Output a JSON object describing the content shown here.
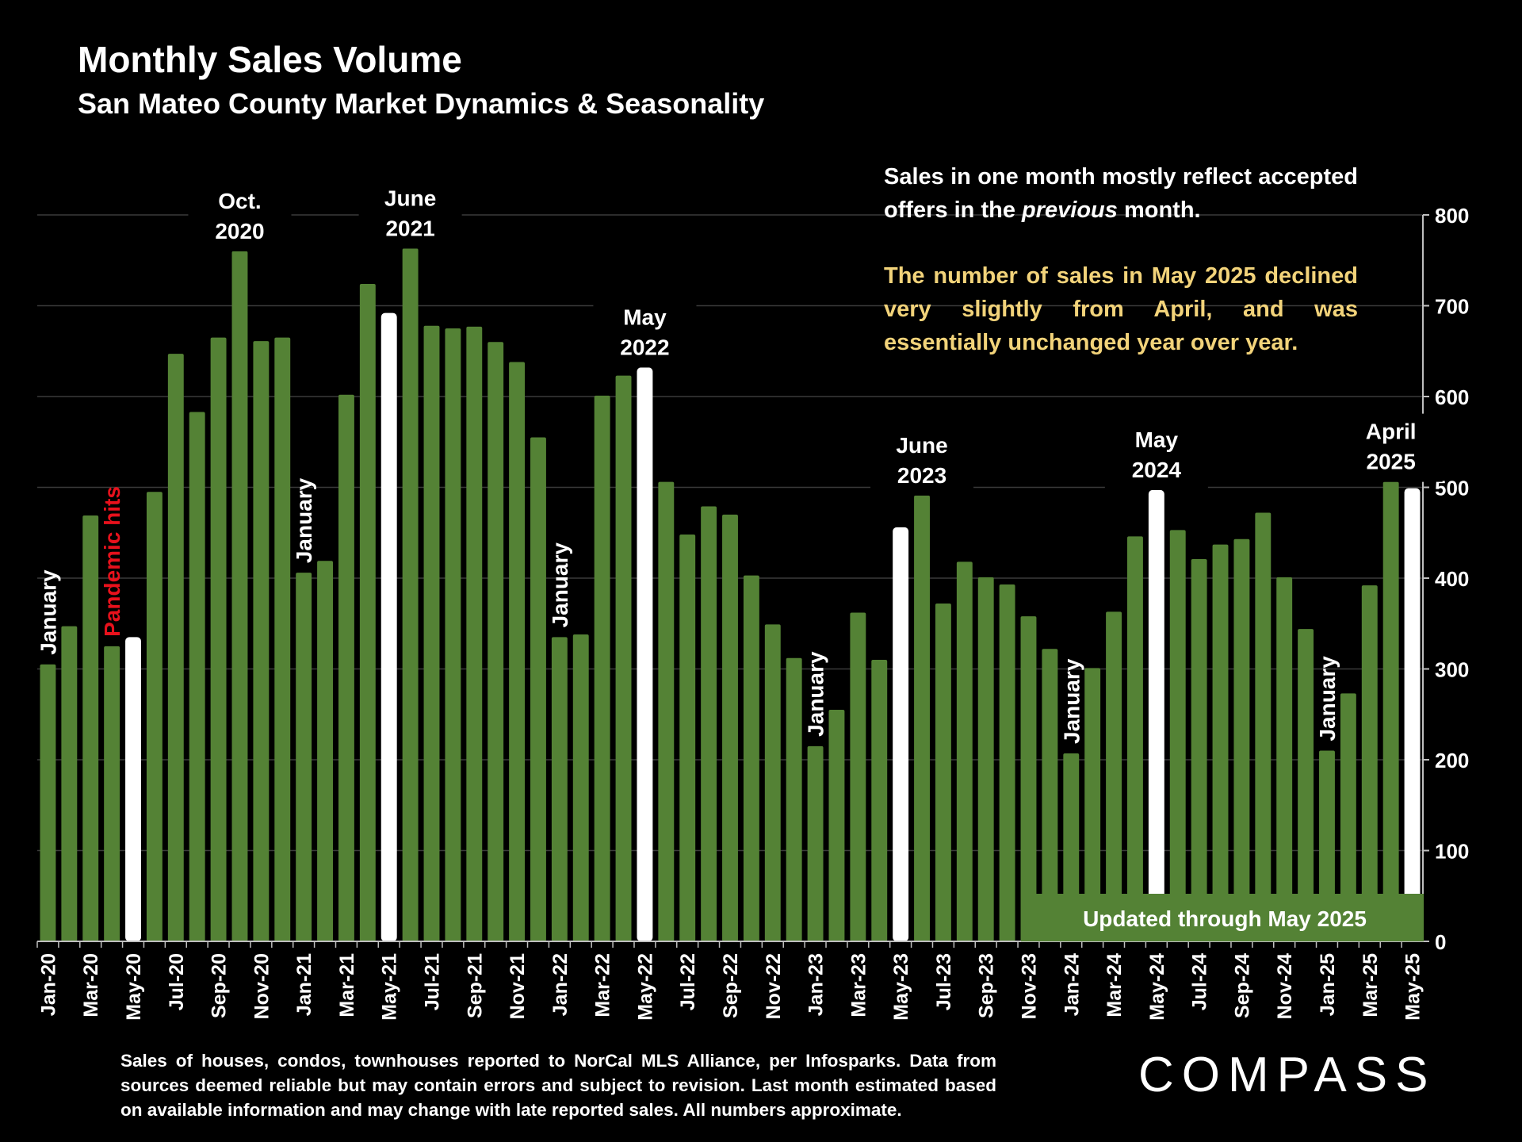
{
  "header": {
    "title": "Monthly Sales Volume",
    "subtitle": "San Mateo County Market Dynamics & Seasonality"
  },
  "notes": {
    "note1_a": "Sales in one month mostly reflect accepted offers in the ",
    "note1_em": "previous",
    "note1_b": " month.",
    "note2": "The number of sales in May 2025 declined very slightly from April, and was essentially unchanged year over year."
  },
  "updated_label": "Updated through May 2025",
  "footnote": "Sales of houses, condos, townhouses reported to NorCal MLS Alliance, per Infosparks. Data from sources deemed reliable but may contain errors and subject to revision. Last month estimated based on available information and may change with late reported sales. All numbers approximate.",
  "logo": "COMPASS",
  "colors": {
    "bar": "#548235",
    "highlight": "#ffffff",
    "note_yellow": "#f2d37a",
    "pandemic": "#e8111c",
    "updated_box": "#548235"
  },
  "chart_data": {
    "type": "bar",
    "title": "Monthly Sales Volume",
    "subtitle": "San Mateo County Market Dynamics & Seasonality",
    "ylim": [
      0,
      800
    ],
    "yticks": [
      0,
      100,
      200,
      300,
      400,
      500,
      600,
      700,
      800
    ],
    "y_axis_side": "right",
    "grid": true,
    "categories": [
      "Jan-20",
      "Feb-20",
      "Mar-20",
      "Apr-20",
      "May-20",
      "Jun-20",
      "Jul-20",
      "Aug-20",
      "Sep-20",
      "Oct-20",
      "Nov-20",
      "Dec-20",
      "Jan-21",
      "Feb-21",
      "Mar-21",
      "Apr-21",
      "May-21",
      "Jun-21",
      "Jul-21",
      "Aug-21",
      "Sep-21",
      "Oct-21",
      "Nov-21",
      "Dec-21",
      "Jan-22",
      "Feb-22",
      "Mar-22",
      "Apr-22",
      "May-22",
      "Jun-22",
      "Jul-22",
      "Aug-22",
      "Sep-22",
      "Oct-22",
      "Nov-22",
      "Dec-22",
      "Jan-23",
      "Feb-23",
      "Mar-23",
      "Apr-23",
      "May-23",
      "Jun-23",
      "Jul-23",
      "Aug-23",
      "Sep-23",
      "Oct-23",
      "Nov-23",
      "Dec-23",
      "Jan-24",
      "Feb-24",
      "Mar-24",
      "Apr-24",
      "May-24",
      "Jun-24",
      "Jul-24",
      "Aug-24",
      "Sep-24",
      "Oct-24",
      "Nov-24",
      "Dec-24",
      "Jan-25",
      "Feb-25",
      "Mar-25",
      "Apr-25",
      "May-25"
    ],
    "values": [
      305,
      347,
      469,
      325,
      335,
      495,
      647,
      583,
      665,
      760,
      661,
      665,
      406,
      419,
      602,
      724,
      692,
      763,
      678,
      675,
      677,
      660,
      638,
      555,
      335,
      338,
      601,
      623,
      632,
      506,
      448,
      479,
      470,
      403,
      349,
      312,
      215,
      255,
      362,
      310,
      456,
      491,
      372,
      418,
      401,
      393,
      358,
      322,
      207,
      301,
      363,
      446,
      497,
      453,
      421,
      437,
      443,
      472,
      401,
      344,
      210,
      273,
      392,
      506,
      499
    ],
    "highlighted": [
      "May-20",
      "May-21",
      "May-22",
      "May-23",
      "May-24",
      "May-25"
    ],
    "tick_labels_every": 2,
    "annotations": [
      {
        "category": "Jan-20",
        "text": "January",
        "style": "vertical",
        "color": "white"
      },
      {
        "category": "Apr-20",
        "text": "Pandemic hits",
        "style": "vertical",
        "color": "red"
      },
      {
        "category": "Jan-21",
        "text": "January",
        "style": "vertical",
        "color": "white"
      },
      {
        "category": "Jan-22",
        "text": "January",
        "style": "vertical",
        "color": "white"
      },
      {
        "category": "Jan-23",
        "text": "January",
        "style": "vertical",
        "color": "white"
      },
      {
        "category": "Jan-24",
        "text": "January",
        "style": "vertical",
        "color": "white"
      },
      {
        "category": "Jan-25",
        "text": "January",
        "style": "vertical",
        "color": "white"
      },
      {
        "category": "Oct-20",
        "text": [
          "Oct.",
          "2020"
        ],
        "style": "horizontal",
        "color": "white"
      },
      {
        "category": "Jun-21",
        "text": [
          "June",
          "2021"
        ],
        "style": "horizontal",
        "color": "white"
      },
      {
        "category": "May-22",
        "text": [
          "May",
          "2022"
        ],
        "style": "horizontal",
        "color": "white"
      },
      {
        "category": "Jun-23",
        "text": [
          "June",
          "2023"
        ],
        "style": "horizontal",
        "color": "white"
      },
      {
        "category": "May-24",
        "text": [
          "May",
          "2024"
        ],
        "style": "horizontal",
        "color": "white"
      },
      {
        "category": "Apr-25",
        "text": [
          "April",
          "2025"
        ],
        "style": "horizontal",
        "color": "white"
      }
    ]
  }
}
